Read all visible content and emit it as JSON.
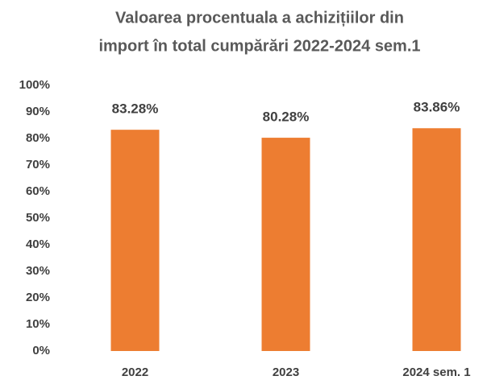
{
  "chart_data": {
    "type": "bar",
    "title": [
      "Valoarea procentuala a achizițiilor din",
      "import în total cumpărări 2022-2024 sem.1"
    ],
    "categories": [
      "2022",
      "2023",
      "2024 sem. 1"
    ],
    "values": [
      83.28,
      80.28,
      83.86
    ],
    "value_labels": [
      "83.28%",
      "80.28%",
      "83.86%"
    ],
    "color": "#ed7d31",
    "ylim": [
      0,
      100
    ],
    "yticks": [
      {
        "value": 0,
        "label": "0%"
      },
      {
        "value": 10,
        "label": "10%"
      },
      {
        "value": 20,
        "label": "20%"
      },
      {
        "value": 30,
        "label": "30%"
      },
      {
        "value": 40,
        "label": "40%"
      },
      {
        "value": 50,
        "label": "50%"
      },
      {
        "value": 60,
        "label": "60%"
      },
      {
        "value": 70,
        "label": "70%"
      },
      {
        "value": 80,
        "label": "80%"
      },
      {
        "value": 90,
        "label": "90%"
      },
      {
        "value": 100,
        "label": "100%"
      }
    ],
    "grid": false
  }
}
